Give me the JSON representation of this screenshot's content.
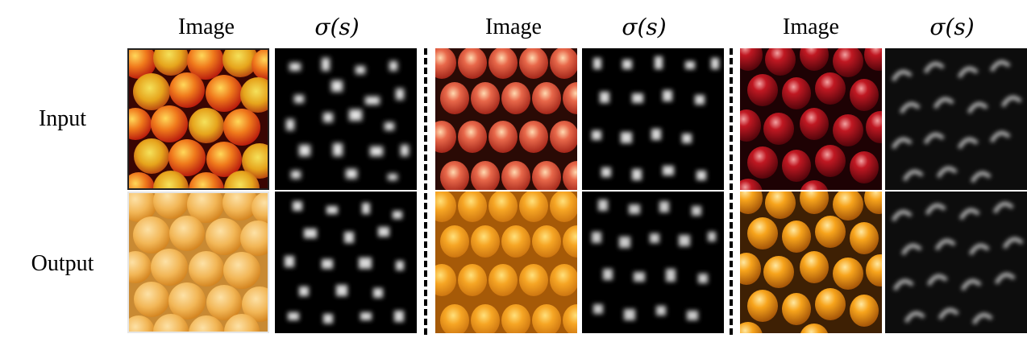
{
  "headers": {
    "image_label": "Image",
    "sigma_label": "σ(s)"
  },
  "rows": {
    "input_label": "Input",
    "output_label": "Output"
  },
  "colors": {
    "apple_red": "#c4190f",
    "apple_yellow": "#f2b21f",
    "apple_dark_red": "#7a0c12",
    "orange": "#f3a420",
    "orange_light": "#f6c36e",
    "map_background": "#000000",
    "map_highlight": "#ffffff"
  }
}
